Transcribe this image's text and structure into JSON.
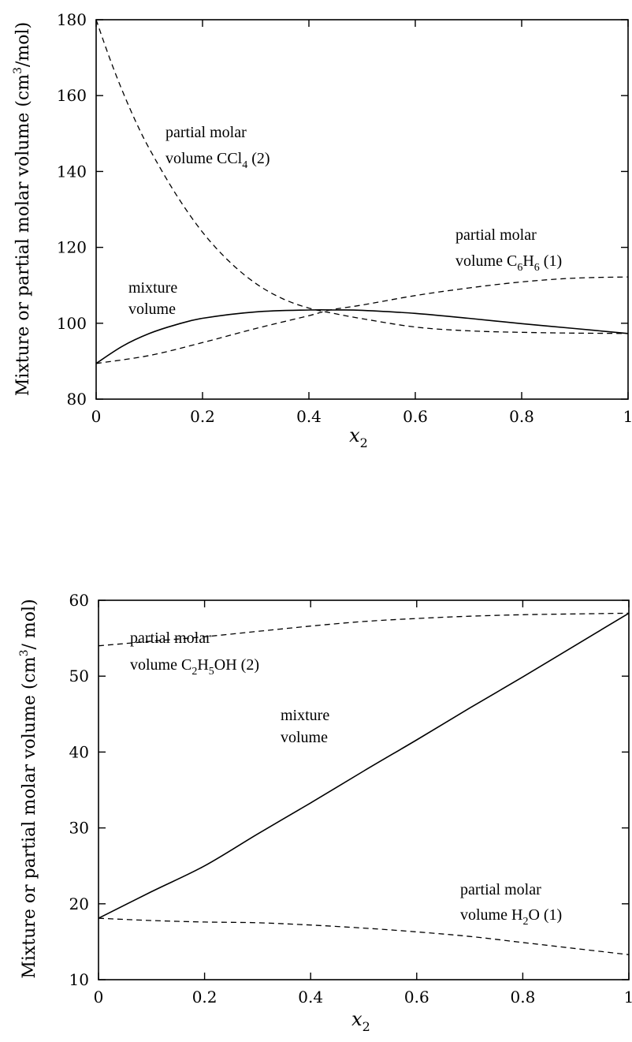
{
  "chart_data": [
    {
      "type": "line",
      "xlabel": "x",
      "xlabel_sub": "2",
      "ylabel": "Mixture or partial molar volume (cm³/mol)",
      "xlim": [
        0,
        1
      ],
      "ylim": [
        80,
        180
      ],
      "xticks": [
        0,
        0.2,
        0.4,
        0.6,
        0.8,
        1
      ],
      "xtick_labels": [
        "0",
        "0.2",
        "0.4",
        "0.6",
        "0.8",
        "1"
      ],
      "yticks": [
        80,
        100,
        120,
        140,
        160,
        180
      ],
      "ytick_labels": [
        "80",
        "100",
        "120",
        "140",
        "160",
        "180"
      ],
      "grid": false,
      "series": [
        {
          "name": "mixture volume",
          "style": "solid",
          "x": [
            0,
            0.05,
            0.1,
            0.15,
            0.2,
            0.3,
            0.4,
            0.45,
            0.5,
            0.6,
            0.7,
            0.8,
            0.9,
            1.0
          ],
          "y": [
            89.4,
            94.0,
            97.3,
            99.6,
            101.3,
            103.0,
            103.5,
            103.5,
            103.4,
            102.6,
            101.3,
            99.9,
            98.6,
            97.3
          ]
        },
        {
          "name": "partial molar volume CCl4 (2)",
          "style": "dashed",
          "x": [
            0,
            0.025,
            0.05,
            0.075,
            0.1,
            0.15,
            0.2,
            0.25,
            0.3,
            0.35,
            0.4,
            0.45,
            0.5,
            0.6,
            0.7,
            0.8,
            0.9,
            1.0
          ],
          "y": [
            180,
            170,
            161,
            153,
            146,
            134,
            124,
            116.3,
            110.5,
            106.5,
            104.0,
            102.5,
            101.2,
            99.0,
            98.0,
            97.6,
            97.4,
            97.3
          ]
        },
        {
          "name": "partial molar volume C6H6 (1)",
          "style": "dashed",
          "x": [
            0,
            0.1,
            0.2,
            0.3,
            0.4,
            0.44,
            0.5,
            0.6,
            0.7,
            0.8,
            0.9,
            1.0
          ],
          "y": [
            89.4,
            91.5,
            94.9,
            98.6,
            102.0,
            103.5,
            104.8,
            107.3,
            109.3,
            110.9,
            111.9,
            112.2
          ]
        }
      ],
      "annotations": [
        {
          "lines": [
            "partial molar",
            "volume CCl4 (2)"
          ]
        },
        {
          "lines": [
            "partial molar",
            "volume C6H6 (1)"
          ]
        },
        {
          "lines": [
            "mixture",
            "volume"
          ]
        }
      ]
    },
    {
      "type": "line",
      "xlabel": "x",
      "xlabel_sub": "2",
      "ylabel": "Mixture or partial molar volume (cm³/mol)",
      "xlim": [
        0,
        1
      ],
      "ylim": [
        10,
        60
      ],
      "xticks": [
        0,
        0.2,
        0.4,
        0.6,
        0.8,
        1
      ],
      "xtick_labels": [
        "0",
        "0.2",
        "0.4",
        "0.6",
        "0.8",
        "1"
      ],
      "yticks": [
        10,
        20,
        30,
        40,
        50,
        60
      ],
      "ytick_labels": [
        "10",
        "20",
        "30",
        "40",
        "50",
        "60"
      ],
      "grid": false,
      "series": [
        {
          "name": "mixture volume",
          "style": "solid",
          "x": [
            0,
            0.1,
            0.2,
            0.3,
            0.4,
            0.5,
            0.6,
            0.7,
            0.8,
            0.9,
            1.0
          ],
          "y": [
            18.1,
            21.6,
            25.0,
            29.2,
            33.3,
            37.5,
            41.6,
            45.8,
            49.9,
            54.1,
            58.3
          ]
        },
        {
          "name": "partial molar volume C2H5OH (2)",
          "style": "dashed",
          "x": [
            0,
            0.1,
            0.2,
            0.3,
            0.4,
            0.5,
            0.6,
            0.7,
            0.8,
            0.9,
            1.0
          ],
          "y": [
            54.0,
            54.6,
            55.2,
            55.9,
            56.6,
            57.2,
            57.6,
            57.9,
            58.1,
            58.2,
            58.3
          ]
        },
        {
          "name": "partial molar volume H2O (1)",
          "style": "dashed",
          "x": [
            0,
            0.1,
            0.2,
            0.3,
            0.4,
            0.5,
            0.6,
            0.7,
            0.8,
            0.9,
            1.0
          ],
          "y": [
            18.1,
            17.8,
            17.6,
            17.5,
            17.2,
            16.8,
            16.3,
            15.7,
            14.9,
            14.1,
            13.3
          ]
        }
      ],
      "annotations": [
        {
          "lines": [
            "partial molar",
            "volume C2H5OH (2)"
          ]
        },
        {
          "lines": [
            "mixture",
            "volume"
          ]
        },
        {
          "lines": [
            "partial molar",
            "volume H2O (1)"
          ]
        }
      ]
    }
  ]
}
